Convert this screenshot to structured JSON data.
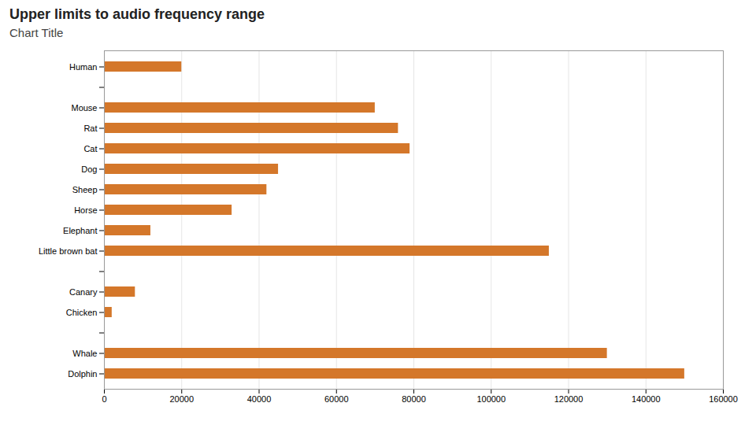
{
  "chart_data": {
    "type": "bar",
    "orientation": "horizontal",
    "title": "Upper limits to audio frequency range",
    "subtitle": "Chart Title",
    "categories": [
      "Human",
      null,
      "Mouse",
      "Rat",
      "Cat",
      "Dog",
      "Sheep",
      "Horse",
      "Elephant",
      "Little brown bat",
      null,
      "Canary",
      "Chicken",
      null,
      "Whale",
      "Dolphin"
    ],
    "values": [
      20000,
      0,
      70000,
      76000,
      79000,
      45000,
      42000,
      33000,
      12000,
      115000,
      0,
      8000,
      2000,
      0,
      130000,
      150000
    ],
    "color": "#D4772A",
    "xlim": [
      0,
      160000
    ],
    "xticks": [
      0,
      20000,
      40000,
      60000,
      80000,
      100000,
      120000,
      140000,
      160000
    ],
    "grid": true
  }
}
